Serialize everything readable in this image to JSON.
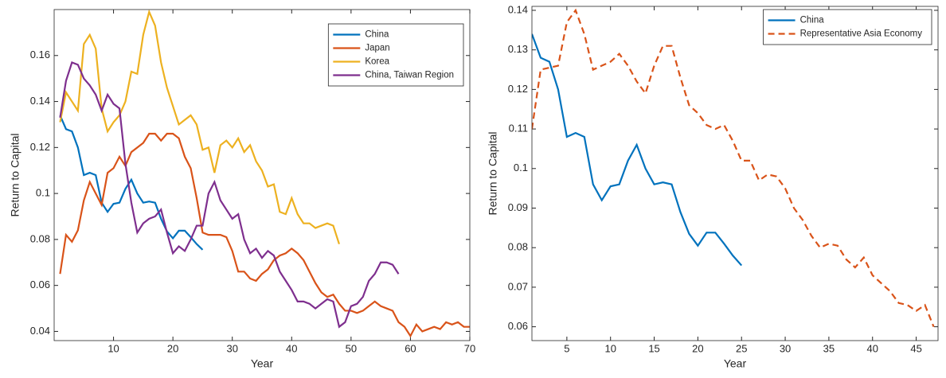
{
  "chart_data": [
    {
      "type": "line",
      "xlabel": "Year",
      "ylabel": "Return to Capital",
      "xlim": [
        0,
        70
      ],
      "ylim": [
        0.036,
        0.18
      ],
      "xticks": [
        10,
        20,
        30,
        40,
        50,
        60,
        70
      ],
      "yticks": [
        0.04,
        0.06,
        0.08,
        0.1,
        0.12,
        0.14,
        0.16
      ],
      "legend": "northeast",
      "series": [
        {
          "name": "China",
          "color": "#0072BD",
          "line_style": "solid",
          "x": [
            1,
            2,
            3,
            4,
            5,
            6,
            7,
            8,
            9,
            10,
            11,
            12,
            13,
            14,
            15,
            16,
            17,
            18,
            19,
            20,
            21,
            22,
            23,
            24,
            25
          ],
          "values": [
            0.134,
            0.128,
            0.127,
            0.12,
            0.108,
            0.109,
            0.108,
            0.096,
            0.092,
            0.0955,
            0.096,
            0.102,
            0.106,
            0.1,
            0.096,
            0.0965,
            0.096,
            0.089,
            0.0835,
            0.0805,
            0.0838,
            0.0838,
            0.081,
            0.078,
            0.0755
          ]
        },
        {
          "name": "Japan",
          "color": "#D95319",
          "line_style": "solid",
          "x": [
            1,
            2,
            3,
            4,
            5,
            6,
            7,
            8,
            9,
            10,
            11,
            12,
            13,
            14,
            15,
            16,
            17,
            18,
            19,
            20,
            21,
            22,
            23,
            24,
            25,
            26,
            27,
            28,
            29,
            30,
            31,
            32,
            33,
            34,
            35,
            36,
            37,
            38,
            39,
            40,
            41,
            42,
            43,
            44,
            45,
            46,
            47,
            48,
            49,
            50,
            51,
            52,
            53,
            54,
            55,
            56,
            57,
            58,
            59,
            60,
            61,
            62,
            63,
            64,
            65,
            66,
            67,
            68,
            69,
            70
          ],
          "values": [
            0.065,
            0.082,
            0.079,
            0.084,
            0.097,
            0.105,
            0.1,
            0.095,
            0.109,
            0.111,
            0.116,
            0.112,
            0.118,
            0.12,
            0.122,
            0.126,
            0.126,
            0.123,
            0.126,
            0.126,
            0.124,
            0.116,
            0.111,
            0.098,
            0.083,
            0.082,
            0.082,
            0.082,
            0.081,
            0.075,
            0.066,
            0.066,
            0.063,
            0.062,
            0.065,
            0.067,
            0.071,
            0.073,
            0.074,
            0.076,
            0.074,
            0.071,
            0.066,
            0.061,
            0.057,
            0.055,
            0.056,
            0.052,
            0.049,
            0.049,
            0.048,
            0.049,
            0.051,
            0.053,
            0.051,
            0.05,
            0.049,
            0.044,
            0.042,
            0.038,
            0.043,
            0.04,
            0.041,
            0.042,
            0.041,
            0.044,
            0.043,
            0.044,
            0.042,
            0.042
          ]
        },
        {
          "name": "Korea",
          "color": "#EDB120",
          "line_style": "solid",
          "x": [
            1,
            2,
            3,
            4,
            5,
            6,
            7,
            8,
            9,
            10,
            11,
            12,
            13,
            14,
            15,
            16,
            17,
            18,
            19,
            20,
            21,
            22,
            23,
            24,
            25,
            26,
            27,
            28,
            29,
            30,
            31,
            32,
            33,
            34,
            35,
            36,
            37,
            38,
            39,
            40,
            41,
            42,
            43,
            44,
            45,
            46,
            47,
            48
          ],
          "values": [
            0.131,
            0.144,
            0.14,
            0.136,
            0.165,
            0.169,
            0.163,
            0.137,
            0.127,
            0.131,
            0.134,
            0.14,
            0.153,
            0.152,
            0.169,
            0.179,
            0.173,
            0.157,
            0.146,
            0.138,
            0.13,
            0.132,
            0.134,
            0.13,
            0.119,
            0.12,
            0.109,
            0.121,
            0.123,
            0.12,
            0.124,
            0.118,
            0.121,
            0.114,
            0.11,
            0.103,
            0.104,
            0.092,
            0.091,
            0.098,
            0.091,
            0.087,
            0.087,
            0.085,
            0.086,
            0.087,
            0.086,
            0.078
          ]
        },
        {
          "name": "China, Taiwan Region",
          "color": "#7E2F8E",
          "line_style": "solid",
          "x": [
            1,
            2,
            3,
            4,
            5,
            6,
            7,
            8,
            9,
            10,
            11,
            12,
            13,
            14,
            15,
            16,
            17,
            18,
            19,
            20,
            21,
            22,
            23,
            24,
            25,
            26,
            27,
            28,
            29,
            30,
            31,
            32,
            33,
            34,
            35,
            36,
            37,
            38,
            39,
            40,
            41,
            42,
            43,
            44,
            45,
            46,
            47,
            48,
            49,
            50,
            51,
            52,
            53,
            54,
            55,
            56,
            57,
            58
          ],
          "values": [
            0.133,
            0.149,
            0.157,
            0.156,
            0.15,
            0.147,
            0.143,
            0.136,
            0.143,
            0.139,
            0.137,
            0.113,
            0.096,
            0.083,
            0.087,
            0.089,
            0.09,
            0.093,
            0.083,
            0.074,
            0.077,
            0.075,
            0.08,
            0.086,
            0.086,
            0.1,
            0.105,
            0.097,
            0.093,
            0.089,
            0.091,
            0.08,
            0.074,
            0.076,
            0.072,
            0.075,
            0.073,
            0.066,
            0.062,
            0.058,
            0.053,
            0.053,
            0.052,
            0.05,
            0.052,
            0.054,
            0.053,
            0.042,
            0.044,
            0.051,
            0.052,
            0.055,
            0.062,
            0.065,
            0.07,
            0.07,
            0.069,
            0.065
          ]
        }
      ]
    },
    {
      "type": "line",
      "xlabel": "Year",
      "ylabel": "Return to Capital",
      "xlim": [
        1,
        47.5
      ],
      "ylim": [
        0.0565,
        0.141
      ],
      "xticks": [
        5,
        10,
        15,
        20,
        25,
        30,
        35,
        40,
        45
      ],
      "yticks": [
        0.06,
        0.07,
        0.08,
        0.09,
        0.1,
        0.11,
        0.12,
        0.13,
        0.14
      ],
      "legend": "northeast",
      "series": [
        {
          "name": "China",
          "color": "#0072BD",
          "line_style": "solid",
          "x": [
            1,
            2,
            3,
            4,
            5,
            6,
            7,
            8,
            9,
            10,
            11,
            12,
            13,
            14,
            15,
            16,
            17,
            18,
            19,
            20,
            21,
            22,
            23,
            24,
            25
          ],
          "values": [
            0.134,
            0.128,
            0.127,
            0.12,
            0.108,
            0.109,
            0.108,
            0.096,
            0.092,
            0.0955,
            0.096,
            0.102,
            0.106,
            0.1,
            0.096,
            0.0965,
            0.096,
            0.089,
            0.0835,
            0.0805,
            0.0838,
            0.0838,
            0.081,
            0.078,
            0.0755
          ]
        },
        {
          "name": "Representative Asia Economy",
          "color": "#D95319",
          "line_style": "dashed",
          "x": [
            1,
            2,
            3,
            4,
            5,
            6,
            7,
            8,
            9,
            10,
            11,
            12,
            13,
            14,
            15,
            16,
            17,
            18,
            19,
            20,
            21,
            22,
            23,
            24,
            25,
            26,
            27,
            28,
            29,
            30,
            31,
            32,
            33,
            34,
            35,
            36,
            37,
            38,
            39,
            40,
            41,
            42,
            43,
            44,
            45,
            46,
            47
          ],
          "values": [
            0.11,
            0.125,
            0.1255,
            0.126,
            0.137,
            0.14,
            0.134,
            0.125,
            0.126,
            0.127,
            0.129,
            0.126,
            0.122,
            0.119,
            0.126,
            0.131,
            0.131,
            0.123,
            0.116,
            0.114,
            0.111,
            0.11,
            0.111,
            0.107,
            0.102,
            0.102,
            0.097,
            0.0985,
            0.098,
            0.095,
            0.09,
            0.087,
            0.083,
            0.08,
            0.081,
            0.0805,
            0.077,
            0.075,
            0.0775,
            0.073,
            0.071,
            0.069,
            0.066,
            0.0655,
            0.064,
            0.0655,
            0.06
          ]
        }
      ]
    }
  ]
}
